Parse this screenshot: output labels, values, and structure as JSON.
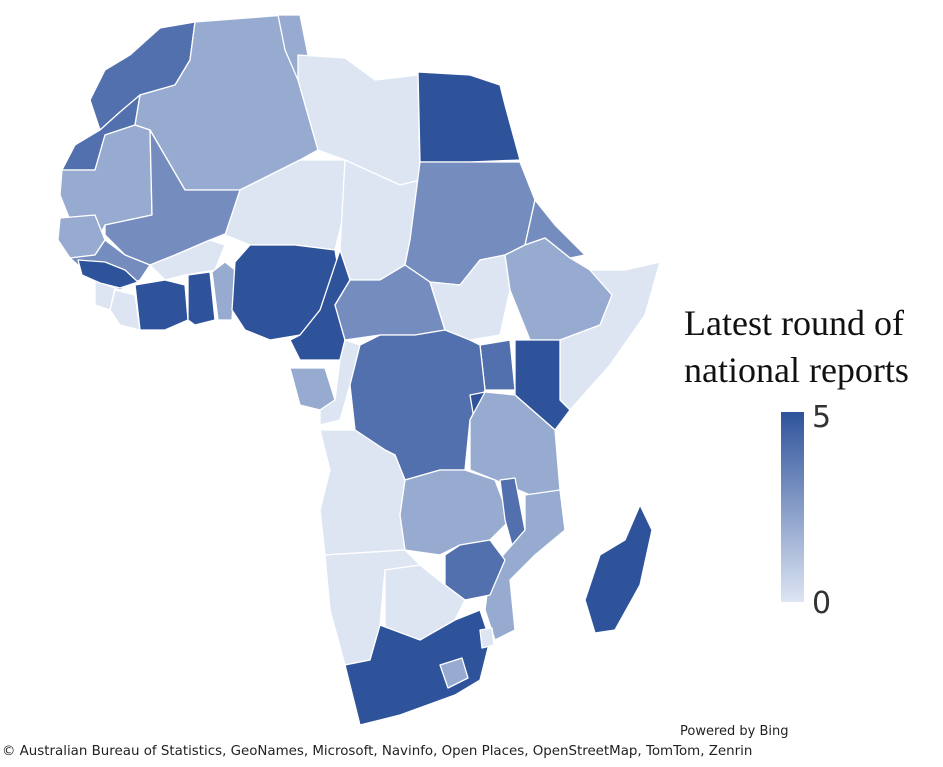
{
  "legend": {
    "title_line1": "Latest round of",
    "title_line2": "national reports",
    "max_label": "5",
    "min_label": "0",
    "scale_min": 0,
    "scale_max": 5,
    "color_low": "#dde5f3",
    "color_high": "#2f539b"
  },
  "footer": {
    "powered_by": "Powered by Bing",
    "attribution": "© Australian Bureau of Statistics, GeoNames, Microsoft, Navinfo, Open Places, OpenStreetMap, TomTom, Zenrin"
  },
  "map_regions": [
    {
      "name": "morocco",
      "value": 4
    },
    {
      "name": "western-sahara",
      "value": 4
    },
    {
      "name": "algeria",
      "value": 2
    },
    {
      "name": "tunisia",
      "value": 2
    },
    {
      "name": "libya",
      "value": 0
    },
    {
      "name": "egypt",
      "value": 5
    },
    {
      "name": "mauritania",
      "value": 2
    },
    {
      "name": "mali",
      "value": 3
    },
    {
      "name": "niger",
      "value": 0
    },
    {
      "name": "chad",
      "value": 0
    },
    {
      "name": "sudan",
      "value": 3
    },
    {
      "name": "eritrea",
      "value": 3
    },
    {
      "name": "senegal-gambia",
      "value": 2
    },
    {
      "name": "guinea",
      "value": 3
    },
    {
      "name": "sierra-leone",
      "value": 0
    },
    {
      "name": "liberia",
      "value": 0
    },
    {
      "name": "guinea-bissau",
      "value": 5
    },
    {
      "name": "cote-divoire",
      "value": 5
    },
    {
      "name": "burkina-faso",
      "value": 0
    },
    {
      "name": "ghana",
      "value": 5
    },
    {
      "name": "togo-benin",
      "value": 2
    },
    {
      "name": "nigeria",
      "value": 5
    },
    {
      "name": "cameroon",
      "value": 5
    },
    {
      "name": "central-african-republic",
      "value": 3
    },
    {
      "name": "south-sudan",
      "value": 0
    },
    {
      "name": "ethiopia",
      "value": 2
    },
    {
      "name": "somalia",
      "value": 0
    },
    {
      "name": "kenya",
      "value": 5
    },
    {
      "name": "uganda",
      "value": 4
    },
    {
      "name": "gabon",
      "value": 2
    },
    {
      "name": "congo",
      "value": 0
    },
    {
      "name": "dr-congo",
      "value": 4
    },
    {
      "name": "rwanda-burundi",
      "value": 5
    },
    {
      "name": "tanzania",
      "value": 2
    },
    {
      "name": "angola",
      "value": 0
    },
    {
      "name": "zambia",
      "value": 2
    },
    {
      "name": "malawi",
      "value": 4
    },
    {
      "name": "mozambique",
      "value": 2
    },
    {
      "name": "zimbabwe",
      "value": 4
    },
    {
      "name": "namibia",
      "value": 0
    },
    {
      "name": "botswana",
      "value": 0
    },
    {
      "name": "south-africa",
      "value": 5
    },
    {
      "name": "lesotho",
      "value": 2
    },
    {
      "name": "eswatini",
      "value": 0
    },
    {
      "name": "madagascar",
      "value": 5
    }
  ]
}
